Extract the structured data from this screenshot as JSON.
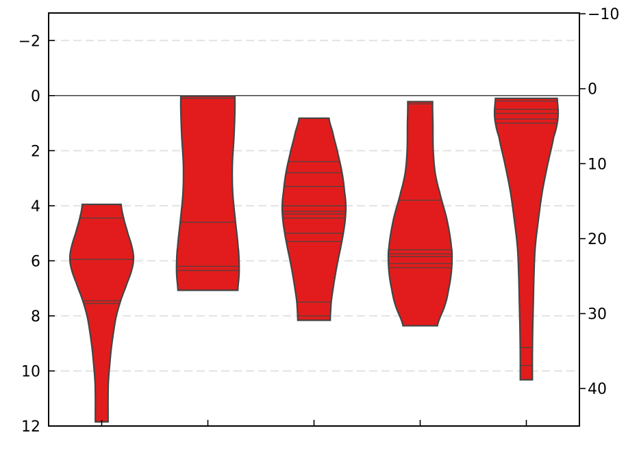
{
  "chart_data": {
    "type": "violin",
    "title": "",
    "xlabel": "",
    "ylabel": "",
    "y_axis": {
      "inverted": true,
      "ylim": [
        -3,
        12
      ],
      "ticks": [
        -2,
        0,
        2,
        4,
        6,
        8,
        10,
        12
      ]
    },
    "secondary_y_axis": {
      "inverted": true,
      "ylim": [
        -10.1,
        45
      ],
      "ticks": [
        -10,
        0,
        10,
        20,
        30,
        40
      ]
    },
    "grid": {
      "y": true,
      "style": "dashed"
    },
    "reference_line": 0,
    "fill_color": "#e21c1c",
    "edge_color": "#444444",
    "series": [
      {
        "profile": [
          [
            3.95,
            0.61
          ],
          [
            4.4,
            0.68
          ],
          [
            5.0,
            0.82
          ],
          [
            5.5,
            0.95
          ],
          [
            5.9,
            1.0
          ],
          [
            6.3,
            0.95
          ],
          [
            6.8,
            0.8
          ],
          [
            7.4,
            0.61
          ],
          [
            8.0,
            0.46
          ],
          [
            8.6,
            0.37
          ],
          [
            9.2,
            0.3
          ],
          [
            9.8,
            0.25
          ],
          [
            10.4,
            0.21
          ],
          [
            11.0,
            0.2
          ],
          [
            11.5,
            0.2
          ],
          [
            11.85,
            0.2
          ]
        ],
        "values": [
          4.45,
          5.95,
          7.45,
          7.55
        ]
      },
      {
        "profile": [
          [
            0.02,
            0.85
          ],
          [
            0.5,
            0.85
          ],
          [
            1.5,
            0.82
          ],
          [
            2.5,
            0.77
          ],
          [
            3.5,
            0.78
          ],
          [
            4.5,
            0.86
          ],
          [
            5.5,
            0.95
          ],
          [
            6.0,
            0.98
          ],
          [
            6.5,
            0.98
          ],
          [
            7.07,
            0.94
          ]
        ],
        "values": [
          0.1,
          4.6,
          6.2,
          6.35
        ]
      },
      {
        "profile": [
          [
            0.82,
            0.47
          ],
          [
            1.3,
            0.58
          ],
          [
            2.0,
            0.73
          ],
          [
            2.8,
            0.88
          ],
          [
            3.5,
            0.96
          ],
          [
            4.0,
            1.0
          ],
          [
            4.5,
            0.98
          ],
          [
            5.0,
            0.92
          ],
          [
            5.5,
            0.84
          ],
          [
            6.0,
            0.75
          ],
          [
            6.5,
            0.67
          ],
          [
            7.0,
            0.6
          ],
          [
            7.5,
            0.54
          ],
          [
            8.16,
            0.51
          ]
        ],
        "values": [
          2.4,
          2.8,
          3.3,
          4.0,
          4.2,
          4.3,
          4.45,
          5.0,
          5.3,
          7.5,
          8.0
        ]
      },
      {
        "profile": [
          [
            0.22,
            0.39
          ],
          [
            0.5,
            0.39
          ],
          [
            1.0,
            0.4
          ],
          [
            2.0,
            0.41
          ],
          [
            2.8,
            0.47
          ],
          [
            3.5,
            0.61
          ],
          [
            4.5,
            0.84
          ],
          [
            5.5,
            0.98
          ],
          [
            6.0,
            1.0
          ],
          [
            6.5,
            0.97
          ],
          [
            7.0,
            0.9
          ],
          [
            7.6,
            0.78
          ],
          [
            8.36,
            0.54
          ]
        ],
        "values": [
          0.3,
          3.8,
          5.6,
          5.75,
          5.85,
          6.1,
          6.25
        ]
      },
      {
        "profile": [
          [
            0.1,
            0.97
          ],
          [
            0.6,
            1.0
          ],
          [
            1.0,
            0.97
          ],
          [
            1.5,
            0.86
          ],
          [
            2.5,
            0.67
          ],
          [
            3.5,
            0.5
          ],
          [
            4.5,
            0.38
          ],
          [
            5.5,
            0.28
          ],
          [
            6.5,
            0.24
          ],
          [
            7.5,
            0.22
          ],
          [
            8.5,
            0.2
          ],
          [
            9.5,
            0.19
          ],
          [
            10.32,
            0.19
          ]
        ],
        "values": [
          0.2,
          0.5,
          0.65,
          0.85,
          1.0,
          9.15,
          9.8
        ]
      }
    ]
  }
}
